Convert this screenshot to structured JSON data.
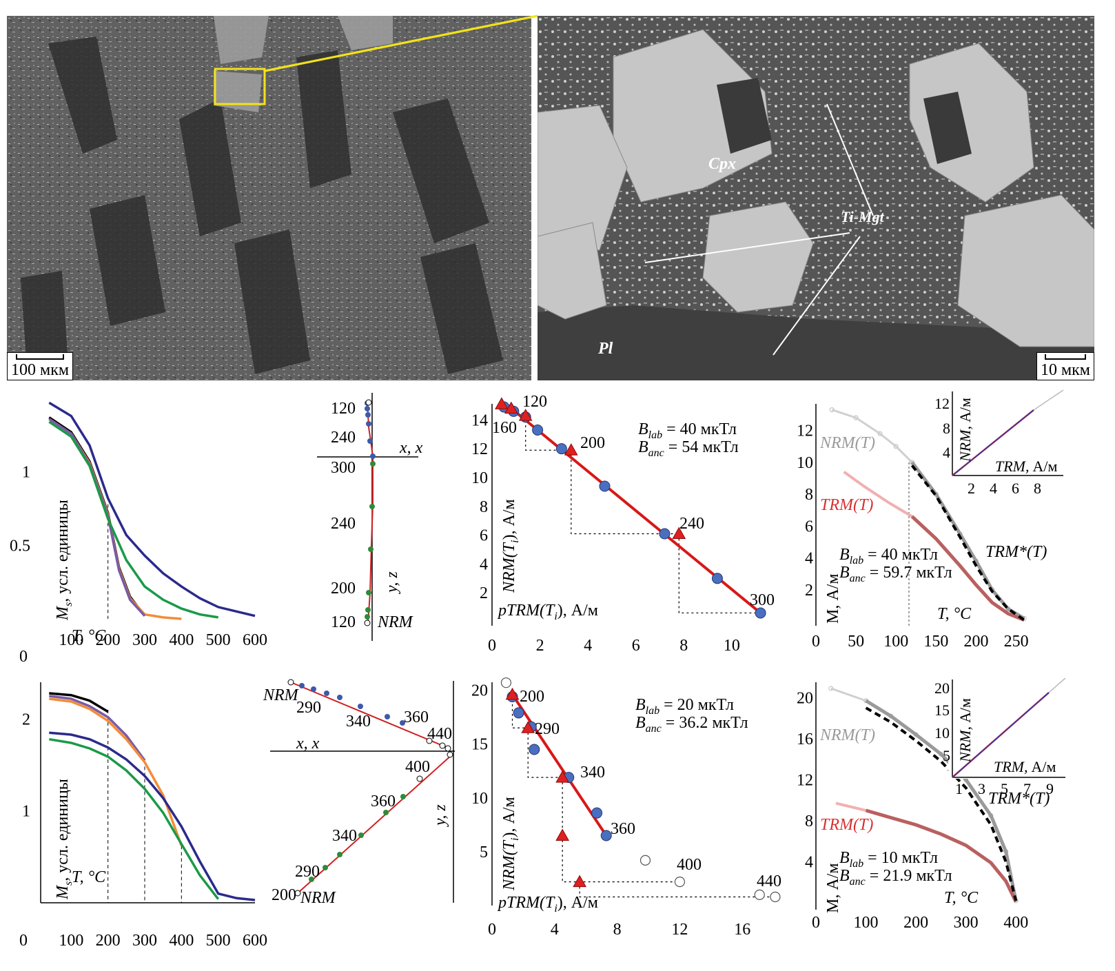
{
  "figure": {
    "sem_left": {
      "scale_label": "100 мкм"
    },
    "sem_right": {
      "scale_label": "10 мкм",
      "phase_labels": [
        "Cpx",
        "Ti-Mgt",
        "Pl"
      ]
    }
  },
  "row1": {
    "ms": {
      "ylabel_sym": "M",
      "ylabel_sub": "s",
      "ylabel_rest": ", усл. единицы",
      "xlabel": "T, °C",
      "xticks": [
        "100",
        "200",
        "300",
        "400",
        "500",
        "600"
      ],
      "yticks": [
        "0.5",
        "1"
      ],
      "origin": "0"
    },
    "zij": {
      "axis_h": "x, x",
      "axis_v": "y, z",
      "nrm_label": "NRM",
      "top_labels": [
        "120",
        "240",
        "300"
      ],
      "bottom_labels": [
        "240",
        "200",
        "120"
      ]
    },
    "ar": {
      "ylabel_main": "NRM(T",
      "ylabel_sub": "i",
      "ylabel_end": "), А/м",
      "xlabel_main": "pTRM(T",
      "xlabel_sub": "i",
      "xlabel_end": "), А/м",
      "blab_sub": "lab",
      "blab_val": "= 40 мкТл",
      "banc_sub": "anc",
      "banc_val": "= 54 мкТл",
      "xticks": [
        "0",
        "2",
        "4",
        "6",
        "8",
        "10"
      ],
      "yticks": [
        "2",
        "4",
        "6",
        "8",
        "10",
        "12",
        "14"
      ],
      "point_labels": [
        "120",
        "160",
        "200",
        "240",
        "300"
      ]
    },
    "wil": {
      "ylabel": "M, А/м",
      "xlabel": "T, °C",
      "nrm_curve": "NRM(T)",
      "trm_curve": "TRM(T)",
      "trm_star": "TRM*(T)",
      "blab_sub": "lab",
      "blab_val": "= 40 мкТл",
      "banc_sub": "anc",
      "banc_val": "= 59.7 мкТл",
      "xticks": [
        "0",
        "50",
        "100",
        "150",
        "200",
        "250"
      ],
      "yticks": [
        "2",
        "4",
        "6",
        "8",
        "10",
        "12"
      ],
      "inset_ylabel": "NRM, А/м",
      "inset_xlabel": "TRM, А/м",
      "inset_xticks": [
        "2",
        "4",
        "6",
        "8"
      ],
      "inset_yticks": [
        "4",
        "8",
        "12"
      ]
    }
  },
  "row2": {
    "ms": {
      "ylabel_sym": "M",
      "ylabel_sub": "s",
      "ylabel_rest": ", усл. единицы",
      "xlabel": "T, °C",
      "xticks": [
        "100",
        "200",
        "300",
        "400",
        "500",
        "600"
      ],
      "yticks": [
        "1",
        "2"
      ],
      "origin": "0"
    },
    "zij": {
      "axis_h": "x, x",
      "axis_v": "y, z",
      "nrm_top": "NRM",
      "nrm_bottom": "NRM",
      "top_labels": [
        "290",
        "340",
        "360",
        "440"
      ],
      "bottom_labels": [
        "400",
        "360",
        "340",
        "290",
        "200"
      ]
    },
    "ar": {
      "ylabel_main": "NRM(T",
      "ylabel_sub": "i",
      "ylabel_end": "), А/м",
      "xlabel_main": "pTRM(T",
      "xlabel_sub": "i",
      "xlabel_end": "), А/м",
      "blab_sub": "lab",
      "blab_val": "= 20 мкТл",
      "banc_sub": "anc",
      "banc_val": "= 36.2 мкТл",
      "xticks": [
        "0",
        "4",
        "8",
        "12",
        "16"
      ],
      "yticks": [
        "5",
        "10",
        "15",
        "20"
      ],
      "point_labels": [
        "200",
        "290",
        "340",
        "360",
        "400",
        "440"
      ]
    },
    "wil": {
      "ylabel": "M, А/м",
      "xlabel": "T, °C",
      "nrm_curve": "NRM(T)",
      "trm_curve": "TRM(T)",
      "trm_star": "TRM*(T)",
      "blab_sub": "lab",
      "blab_val": "= 10 мкТл",
      "banc_sub": "anc",
      "banc_val": "= 21.9 мкТл",
      "xticks": [
        "0",
        "100",
        "200",
        "300",
        "400"
      ],
      "yticks": [
        "4",
        "8",
        "12",
        "16",
        "20"
      ],
      "inset_ylabel": "NRM, А/м",
      "inset_xlabel": "TRM, А/м",
      "inset_xticks": [
        "1",
        "3",
        "5",
        "7",
        "9"
      ],
      "inset_yticks": [
        "5",
        "10",
        "15",
        "20"
      ]
    }
  },
  "chart_data": [
    {
      "type": "line",
      "panel": "row1-Ms(T)",
      "xlabel": "T, °C",
      "ylabel": "Ms, усл. единицы",
      "xlim": [
        0,
        600
      ],
      "ylim": [
        0,
        1.5
      ],
      "series": [
        {
          "color": "#2b2a8c",
          "x": [
            40,
            100,
            150,
            200,
            250,
            300,
            350,
            400,
            450,
            500,
            550,
            600
          ],
          "y": [
            1.47,
            1.38,
            1.18,
            0.82,
            0.57,
            0.43,
            0.31,
            0.22,
            0.14,
            0.08,
            0.05,
            0.02
          ]
        },
        {
          "color": "#000000",
          "x": [
            40,
            100,
            150,
            200,
            230,
            260,
            300
          ],
          "y": [
            1.37,
            1.27,
            1.07,
            0.72,
            0.35,
            0.15,
            0.02
          ]
        },
        {
          "color": "#f28c38",
          "x": [
            40,
            100,
            150,
            200,
            230,
            260,
            300,
            350,
            400
          ],
          "y": [
            1.36,
            1.26,
            1.06,
            0.71,
            0.34,
            0.14,
            0.03,
            0.01,
            0.0
          ]
        },
        {
          "color": "#7a5aa6",
          "x": [
            40,
            100,
            150,
            200,
            230,
            260,
            300
          ],
          "y": [
            1.36,
            1.26,
            1.05,
            0.7,
            0.33,
            0.13,
            0.02
          ]
        },
        {
          "color": "#1a9a48",
          "x": [
            40,
            100,
            150,
            200,
            250,
            300,
            350,
            400,
            450,
            500
          ],
          "y": [
            1.34,
            1.24,
            1.04,
            0.68,
            0.4,
            0.22,
            0.13,
            0.07,
            0.03,
            0.01
          ]
        }
      ]
    },
    {
      "type": "scatter",
      "panel": "row1-Arai",
      "xlabel": "pTRM(Ti), А/м",
      "ylabel": "NRM(Ti), А/м",
      "xlim": [
        0,
        11.5
      ],
      "ylim": [
        0,
        15.5
      ],
      "series": [
        {
          "name": "",
          "marker": "circle",
          "x": [
            0.5,
            0.9,
            1.4,
            1.9,
            2.9,
            4.7,
            7.2,
            9.4,
            11.2
          ],
          "y": [
            14.9,
            14.6,
            14.2,
            13.3,
            12.0,
            9.4,
            6.1,
            3.0,
            0.6
          ]
        },
        {
          "name": "",
          "marker": "triangle",
          "x": [
            0.4,
            0.8,
            1.4,
            3.3,
            7.8
          ],
          "y": [
            15.1,
            14.8,
            14.3,
            11.9,
            6.1
          ]
        }
      ]
    },
    {
      "type": "line",
      "panel": "row1-Wilson",
      "xlabel": "T, °C",
      "ylabel": "M, А/м",
      "xlim": [
        0,
        265
      ],
      "ylim": [
        0,
        13.5
      ],
      "series": [
        {
          "name": "NRM(T)",
          "x": [
            20,
            50,
            80,
            100,
            120,
            150,
            180,
            200,
            220,
            240,
            260
          ],
          "y": [
            13.3,
            12.8,
            11.8,
            11.0,
            10.0,
            8.0,
            5.5,
            3.8,
            2.0,
            0.8,
            0.2
          ]
        },
        {
          "name": "TRM(T)",
          "x": [
            35,
            60,
            90,
            120,
            150,
            180,
            200,
            220,
            240,
            260
          ],
          "y": [
            9.4,
            8.5,
            7.5,
            6.6,
            5.2,
            3.5,
            2.3,
            1.2,
            0.5,
            0.1
          ]
        },
        {
          "name": "TRM*(T)",
          "x": [
            120,
            150,
            180,
            200,
            220,
            240,
            260
          ],
          "y": [
            9.8,
            7.9,
            5.3,
            3.5,
            1.9,
            0.8,
            0.1
          ]
        }
      ]
    },
    {
      "type": "line",
      "panel": "row2-Ms(T)",
      "xlabel": "T, °C",
      "ylabel": "Ms, усл. единицы",
      "xlim": [
        0,
        600
      ],
      "ylim": [
        0,
        2.4
      ],
      "series": [
        {
          "color": "#000000",
          "x": [
            40,
            100,
            150,
            200
          ],
          "y": [
            2.28,
            2.26,
            2.2,
            2.08
          ]
        },
        {
          "color": "#7a5aa6",
          "x": [
            40,
            100,
            150,
            200,
            250,
            300
          ],
          "y": [
            2.25,
            2.22,
            2.14,
            2.02,
            1.82,
            1.55
          ]
        },
        {
          "color": "#f28c38",
          "x": [
            40,
            100,
            150,
            200,
            250,
            300,
            350,
            400
          ],
          "y": [
            2.22,
            2.19,
            2.11,
            1.98,
            1.78,
            1.53,
            1.17,
            0.62
          ]
        },
        {
          "color": "#2b2a8c",
          "x": [
            40,
            100,
            150,
            200,
            250,
            300,
            350,
            400,
            450,
            500,
            550,
            600
          ],
          "y": [
            1.85,
            1.83,
            1.78,
            1.69,
            1.56,
            1.38,
            1.14,
            0.83,
            0.45,
            0.1,
            0.05,
            0.03
          ]
        },
        {
          "color": "#1a9a48",
          "x": [
            40,
            100,
            150,
            200,
            250,
            300,
            350,
            400,
            450,
            500
          ],
          "y": [
            1.78,
            1.74,
            1.68,
            1.59,
            1.44,
            1.24,
            0.98,
            0.64,
            0.3,
            0.04
          ]
        }
      ]
    },
    {
      "type": "scatter",
      "panel": "row2-Arai",
      "xlabel": "pTRM(Ti), А/м",
      "ylabel": "NRM(Ti), А/м",
      "xlim": [
        0,
        18.5
      ],
      "ylim": [
        0,
        21
      ],
      "series": [
        {
          "name": "",
          "marker": "circle",
          "x": [
            1.3,
            1.7,
            2.5,
            2.7,
            4.9,
            6.7,
            7.3
          ],
          "y": [
            19.4,
            17.9,
            16.6,
            14.5,
            11.9,
            8.6,
            6.5
          ]
        },
        {
          "name": "",
          "marker": "triangle",
          "x": [
            1.3,
            2.3,
            4.5,
            4.5,
            5.6
          ],
          "y": [
            19.6,
            16.5,
            11.9,
            6.5,
            2.2
          ]
        },
        {
          "name": "",
          "marker": "open-circle",
          "x": [
            0.9,
            9.8,
            12.0,
            17.1,
            18.1
          ],
          "y": [
            20.7,
            4.2,
            2.2,
            1.0,
            0.8
          ]
        }
      ]
    },
    {
      "type": "line",
      "panel": "row2-Wilson",
      "xlabel": "T, °C",
      "ylabel": "M, А/м",
      "xlim": [
        0,
        430
      ],
      "ylim": [
        0,
        21.5
      ],
      "series": [
        {
          "name": "NRM(T)",
          "x": [
            30,
            100,
            150,
            200,
            250,
            300,
            350,
            380,
            400
          ],
          "y": [
            20.9,
            19.7,
            18.2,
            16.4,
            14.5,
            12.0,
            8.5,
            5.0,
            0.2
          ]
        },
        {
          "name": "TRM(T)",
          "x": [
            40,
            100,
            150,
            200,
            250,
            300,
            350,
            380,
            400
          ],
          "y": [
            9.7,
            9.0,
            8.3,
            7.6,
            6.7,
            5.6,
            3.9,
            2.1,
            0.1
          ]
        },
        {
          "name": "TRM*(T)",
          "x": [
            100,
            150,
            200,
            250,
            300,
            350,
            380,
            400
          ],
          "y": [
            19.0,
            17.6,
            15.8,
            13.8,
            11.2,
            7.6,
            4.0,
            0.2
          ]
        }
      ]
    }
  ]
}
